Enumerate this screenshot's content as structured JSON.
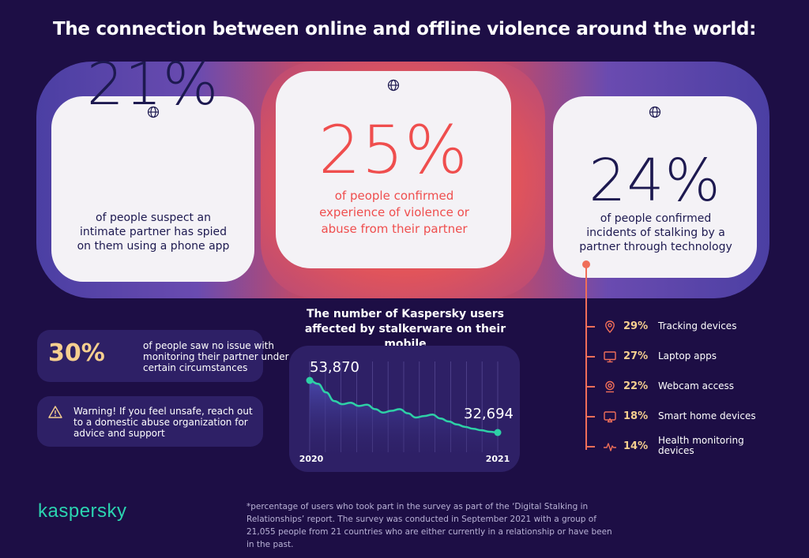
{
  "title": "The connection between online and offline violence around the world:",
  "cards": {
    "left": {
      "value": "21%",
      "desc": "of people suspect an intimate partner has spied on them using a phone app"
    },
    "middle": {
      "value": "25%",
      "desc": "of people confirmed experience of violence or abuse from their partner"
    },
    "right": {
      "value": "24%",
      "desc": "of people confirmed incidents of stalking by a partner through technology"
    }
  },
  "stat30": {
    "value": "30%",
    "desc": "of people saw no issue with monitoring their partner under certain circumstances"
  },
  "warning": {
    "text": "Warning! If you feel unsafe, reach out to a domestic abuse organization for advice and support"
  },
  "chart": {
    "title": "The number of Kaspersky users affected by stalkerware on their mobile"
  },
  "chart_data": {
    "type": "area",
    "title": "The number of Kaspersky users affected by stalkerware on their mobile",
    "x_labels": [
      "2020",
      "2021"
    ],
    "start_label": "53,870",
    "end_label": "32,694",
    "start_value": 53870,
    "end_value": 32694,
    "series": [
      {
        "values": [
          53870,
          52500,
          49000,
          45500,
          44200,
          44800,
          43500,
          44000,
          42200,
          40800,
          41500,
          42200,
          40500,
          38800,
          39400,
          40000,
          38400,
          37200,
          36000,
          35000,
          34200,
          33600,
          33000,
          32694
        ]
      }
    ],
    "colors": {
      "line": "#2ed0a6",
      "area_top": "#4b4ab0",
      "area_bottom": "#2e2066"
    }
  },
  "list": [
    {
      "icon": "location-pin-icon",
      "pct": "29%",
      "label": "Tracking devices"
    },
    {
      "icon": "monitor-icon",
      "pct": "27%",
      "label": "Laptop apps"
    },
    {
      "icon": "webcam-icon",
      "pct": "22%",
      "label": "Webcam access"
    },
    {
      "icon": "smart-home-icon",
      "pct": "18%",
      "label": "Smart home devices"
    },
    {
      "icon": "pulse-icon",
      "pct": "14%",
      "label": "Health monitoring devices"
    }
  ],
  "logo": "kaspersky",
  "footnote": "*percentage of users who took part in the survey as part of the ‘Digital Stalking in Relationships’ report. The survey was conducted in September 2021 with a group of 21,055 people from 21 countries who are either currently in a relationship or have been in the past.",
  "colors": {
    "background": "#1d0e45",
    "accent_red": "#ef4e4e",
    "accent_gold": "#f6cf8f",
    "accent_teal": "#2bd4b0",
    "navy": "#1d1950"
  }
}
